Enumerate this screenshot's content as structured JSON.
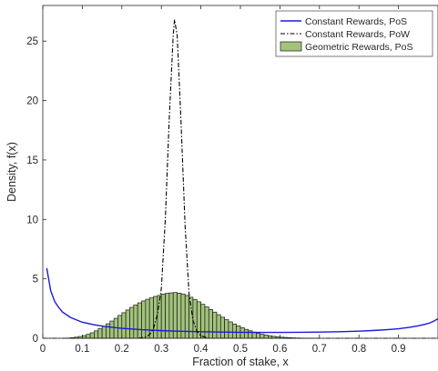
{
  "chart_data": {
    "type": "line",
    "xlabel": "Fraction of stake, x",
    "ylabel": "Density, f(x)",
    "xlim": [
      0,
      1
    ],
    "ylim": [
      0,
      28
    ],
    "xticks": [
      0,
      0.1,
      0.2,
      0.3,
      0.4,
      0.5,
      0.6,
      0.7,
      0.8,
      0.9
    ],
    "xtick_labels": [
      "0",
      "0.1",
      "0.2",
      "0.3",
      "0.4",
      "0.5",
      "0.6",
      "0.7",
      "0.8",
      "0.9"
    ],
    "yticks": [
      0,
      5,
      10,
      15,
      20,
      25
    ],
    "ytick_labels": [
      "0",
      "5",
      "10",
      "15",
      "20",
      "25"
    ],
    "grid": false,
    "legend_position": "top-right",
    "series": [
      {
        "name": "Constant Rewards, PoS",
        "kind": "line",
        "style": "solid",
        "color": "#1a1adb",
        "x": [
          0.01,
          0.02,
          0.03,
          0.04,
          0.05,
          0.07,
          0.1,
          0.13,
          0.16,
          0.2,
          0.25,
          0.3,
          0.35,
          0.4,
          0.45,
          0.5,
          0.55,
          0.6,
          0.65,
          0.7,
          0.75,
          0.8,
          0.84,
          0.87,
          0.9,
          0.93,
          0.95,
          0.96,
          0.97,
          0.98,
          0.99,
          1.0
        ],
        "y": [
          5.9,
          4.0,
          3.1,
          2.6,
          2.2,
          1.75,
          1.35,
          1.13,
          0.98,
          0.84,
          0.72,
          0.64,
          0.59,
          0.55,
          0.52,
          0.5,
          0.49,
          0.49,
          0.5,
          0.52,
          0.55,
          0.6,
          0.66,
          0.72,
          0.8,
          0.93,
          1.05,
          1.12,
          1.2,
          1.3,
          1.45,
          1.65
        ]
      },
      {
        "name": "Constant Rewards, PoW",
        "kind": "line",
        "style": "dash-dot",
        "color": "#000000",
        "x": [
          0.0,
          0.24,
          0.26,
          0.27,
          0.28,
          0.29,
          0.3,
          0.31,
          0.32,
          0.33,
          0.3333,
          0.34,
          0.35,
          0.36,
          0.37,
          0.38,
          0.39,
          0.4,
          0.42,
          1.0
        ],
        "y": [
          0,
          0,
          0.1,
          0.3,
          0.8,
          2.0,
          4.2,
          10.0,
          18.5,
          25.5,
          26.8,
          25.5,
          18.0,
          9.5,
          3.8,
          1.5,
          0.6,
          0.2,
          0,
          0
        ]
      },
      {
        "name": "Geometric Rewards, PoS",
        "kind": "histogram",
        "color": "#a3c37c",
        "edge_color": "#1a1a1a",
        "bin_width": 0.01,
        "x": [
          0.06,
          0.07,
          0.08,
          0.09,
          0.1,
          0.11,
          0.12,
          0.13,
          0.14,
          0.15,
          0.16,
          0.17,
          0.18,
          0.19,
          0.2,
          0.21,
          0.22,
          0.23,
          0.24,
          0.25,
          0.26,
          0.27,
          0.28,
          0.29,
          0.3,
          0.31,
          0.32,
          0.33,
          0.34,
          0.35,
          0.36,
          0.37,
          0.38,
          0.39,
          0.4,
          0.41,
          0.42,
          0.43,
          0.44,
          0.45,
          0.46,
          0.47,
          0.48,
          0.49,
          0.5,
          0.51,
          0.52,
          0.53,
          0.54,
          0.55,
          0.56,
          0.57,
          0.58,
          0.59,
          0.6,
          0.61,
          0.62,
          0.63,
          0.64,
          0.65,
          0.66,
          0.67,
          0.68,
          0.69
        ],
        "y": [
          0.02,
          0.05,
          0.09,
          0.15,
          0.22,
          0.33,
          0.46,
          0.62,
          0.8,
          1.0,
          1.22,
          1.45,
          1.68,
          1.92,
          2.15,
          2.38,
          2.6,
          2.8,
          2.98,
          3.14,
          3.28,
          3.4,
          3.52,
          3.6,
          3.72,
          3.78,
          3.82,
          3.85,
          3.8,
          3.72,
          3.6,
          3.45,
          3.27,
          3.07,
          2.86,
          2.64,
          2.42,
          2.2,
          1.98,
          1.77,
          1.57,
          1.38,
          1.2,
          1.04,
          0.89,
          0.75,
          0.63,
          0.52,
          0.42,
          0.34,
          0.27,
          0.21,
          0.16,
          0.12,
          0.09,
          0.07,
          0.05,
          0.035,
          0.025,
          0.018,
          0.012,
          0.008,
          0.005,
          0.003
        ]
      }
    ]
  }
}
